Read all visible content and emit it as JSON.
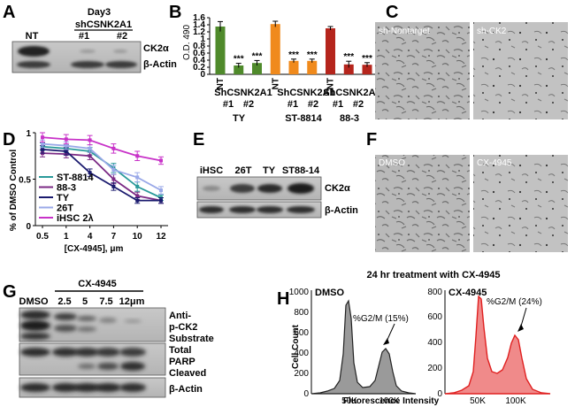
{
  "panels": {
    "A": {
      "label": "A",
      "title": "Day3",
      "lane_header": "shCSNK2A1",
      "lanes": [
        "NT",
        "#1",
        "#2"
      ],
      "bands": [
        "CK2α",
        "β-Actin"
      ]
    },
    "B": {
      "label": "B",
      "groups": [
        {
          "name": "TY",
          "construct": "ShCSNK2A1",
          "lanes": [
            "NT",
            "#1",
            "#2"
          ]
        },
        {
          "name": "ST-8814",
          "construct": "ShCSNK2A1",
          "lanes": [
            "NT",
            "#1",
            "#2"
          ]
        },
        {
          "name": "88-3",
          "construct": "ShCSNK2A1",
          "lanes": [
            "NT",
            "#1",
            "#2"
          ]
        }
      ]
    },
    "C": {
      "label": "C",
      "images": [
        "sh-Nontarget",
        "sh-CK2"
      ]
    },
    "D": {
      "label": "D"
    },
    "E": {
      "label": "E",
      "lanes": [
        "iHSC",
        "26T",
        "TY",
        "ST88-14"
      ],
      "bands": [
        "CK2α",
        "β-Actin"
      ]
    },
    "F": {
      "label": "F",
      "images": [
        "DMSO",
        "CX-4945"
      ]
    },
    "G": {
      "label": "G",
      "treatment": "CX-4945",
      "lanes": [
        "DMSO",
        "2.5",
        "5",
        "7.5",
        "12μm"
      ],
      "blots": [
        {
          "lines": [
            "Anti-",
            "p-CK2",
            "Substrate"
          ]
        },
        {
          "lines": [
            "Total",
            "PARP",
            "Cleaved"
          ]
        },
        {
          "lines": [
            "β-Actin"
          ]
        }
      ]
    },
    "H": {
      "label": "H",
      "title": "24 hr treatment with CX-4945",
      "left_title": "DMSO",
      "right_title": "CX-4945",
      "left_annotation": "%G2/M (15%)",
      "right_annotation": "%G2/M (24%)",
      "left_yticks": [
        "0",
        "200",
        "400",
        "600",
        "800",
        "1000"
      ],
      "right_yticks": [
        "0",
        "200",
        "400",
        "600",
        "800"
      ],
      "xticks": [
        "50K",
        "100K"
      ],
      "ylabel": "Cell Count",
      "xlabel": "Fluorescence Intensity"
    }
  },
  "colors": {
    "green": "#4f8a2b",
    "orange": "#f08a1c",
    "red": "#b5251c",
    "teal": "#2a9a9a",
    "purple": "#7b2a85",
    "navy": "#1a1a6e",
    "lightblue": "#9aa9e8",
    "magenta": "#c832c8",
    "dmso_fill": "#9a9a9a",
    "cx_fill": "#f08a8a",
    "cx_line": "#e02020"
  },
  "chart_data": [
    {
      "type": "bar",
      "title": "",
      "xlabel": "",
      "ylabel": "O.D. 490",
      "ylim": [
        0,
        1.6
      ],
      "yticks": [
        "0",
        "0.2",
        "0.4",
        "0.6",
        "0.8",
        "1",
        "1.2",
        "1.4",
        "1.6"
      ],
      "categories": [
        "TY NT",
        "TY #1",
        "TY #2",
        "ST-8814 NT",
        "ST-8814 #1",
        "ST-8814 #2",
        "88-3 NT",
        "88-3 #1",
        "88-3 #2"
      ],
      "values": [
        1.35,
        0.25,
        0.32,
        1.42,
        0.38,
        0.38,
        1.3,
        0.28,
        0.27
      ],
      "errors": [
        0.14,
        0.06,
        0.07,
        0.08,
        0.05,
        0.05,
        0.05,
        0.09,
        0.06
      ],
      "significance": [
        "",
        "***",
        "***",
        "",
        "***",
        "***",
        "",
        "***",
        "***"
      ],
      "bar_colors": [
        "green",
        "green",
        "green",
        "orange",
        "orange",
        "orange",
        "red",
        "red",
        "red"
      ]
    },
    {
      "type": "line",
      "title": "",
      "xlabel": "[CX-4945], μm",
      "ylabel": "% of DMSO Control",
      "x": [
        "0.5",
        "1",
        "4",
        "7",
        "10",
        "12"
      ],
      "ylim": [
        0,
        1.0
      ],
      "yticks": [
        "0",
        "0.5",
        "1"
      ],
      "legend_position": "bottom-left",
      "series": [
        {
          "name": "ST-8814",
          "color": "teal",
          "values": [
            0.85,
            0.83,
            0.8,
            0.62,
            0.42,
            0.3
          ],
          "errors": [
            0.04,
            0.04,
            0.04,
            0.05,
            0.05,
            0.03
          ]
        },
        {
          "name": "88-3",
          "color": "purple",
          "values": [
            0.78,
            0.77,
            0.75,
            0.5,
            0.32,
            0.27
          ],
          "errors": [
            0.04,
            0.04,
            0.04,
            0.05,
            0.04,
            0.03
          ]
        },
        {
          "name": "TY",
          "color": "navy",
          "values": [
            0.82,
            0.8,
            0.57,
            0.42,
            0.27,
            0.27
          ],
          "errors": [
            0.04,
            0.04,
            0.04,
            0.04,
            0.03,
            0.03
          ]
        },
        {
          "name": "26T",
          "color": "lightblue",
          "values": [
            0.88,
            0.86,
            0.83,
            0.6,
            0.52,
            0.38
          ],
          "errors": [
            0.04,
            0.04,
            0.04,
            0.05,
            0.05,
            0.04
          ]
        },
        {
          "name": "iHSC 2λ",
          "color": "magenta",
          "values": [
            0.95,
            0.93,
            0.92,
            0.83,
            0.75,
            0.7
          ],
          "errors": [
            0.05,
            0.05,
            0.05,
            0.05,
            0.05,
            0.04
          ]
        }
      ]
    }
  ]
}
